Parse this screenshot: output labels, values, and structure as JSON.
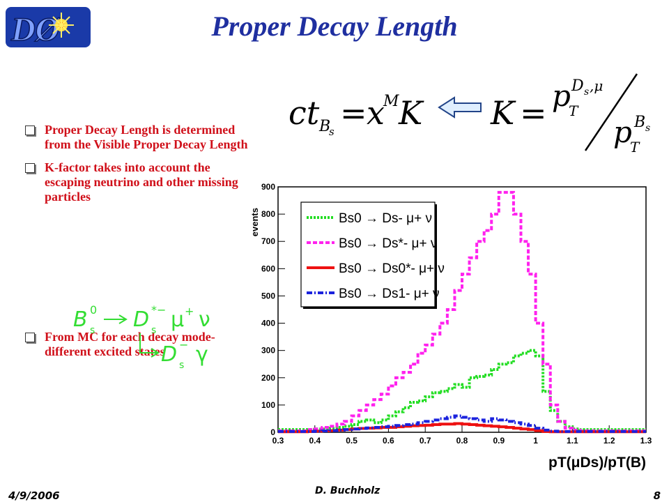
{
  "slide": {
    "title": "Proper Decay Length",
    "logo_text": "DØ",
    "bullets": [
      "Proper Decay Length is determined from the Visible Proper Decay Length",
      " K-factor takes into account the escaping neutrino and other missing particles",
      "From MC for each decay mode- different excited states"
    ],
    "footer": {
      "date": "4/9/2006",
      "author": "D. Buchholz",
      "page": "8"
    },
    "colors": {
      "title": "#1f2fa0",
      "bullet_text": "#d0101a",
      "decay_diagram": "#33dd33"
    }
  },
  "chart_data": {
    "type": "line",
    "xlabel": "pT(μDs)/pT(B)",
    "ylabel": "events",
    "xlim": [
      0.3,
      1.3
    ],
    "ylim": [
      0,
      900
    ],
    "xticks": [
      "0.3",
      "0.4",
      "0.5",
      "0.6",
      "0.7",
      "0.8",
      "0.9",
      "1",
      "1.1",
      "1.2",
      "1.3"
    ],
    "yticks": [
      "0",
      "100",
      "200",
      "300",
      "400",
      "500",
      "600",
      "700",
      "800",
      "900"
    ],
    "legend_position": "top-left",
    "x": [
      0.3,
      0.32,
      0.34,
      0.36,
      0.38,
      0.4,
      0.42,
      0.44,
      0.46,
      0.48,
      0.5,
      0.52,
      0.54,
      0.56,
      0.58,
      0.6,
      0.62,
      0.64,
      0.66,
      0.68,
      0.7,
      0.72,
      0.74,
      0.76,
      0.78,
      0.8,
      0.82,
      0.84,
      0.86,
      0.88,
      0.9,
      0.92,
      0.94,
      0.96,
      0.98,
      1.0,
      1.02,
      1.04,
      1.06,
      1.08,
      1.1,
      1.12,
      1.14,
      1.16,
      1.18,
      1.2,
      1.22,
      1.24,
      1.26,
      1.28
    ],
    "series": [
      {
        "name": "Bs0 → Ds- μ+ ν",
        "color": "#22dd22",
        "style": "dotted",
        "values": [
          10,
          10,
          10,
          10,
          10,
          12,
          12,
          15,
          18,
          22,
          28,
          40,
          45,
          35,
          45,
          60,
          75,
          90,
          110,
          115,
          130,
          145,
          150,
          160,
          175,
          165,
          200,
          205,
          210,
          230,
          250,
          255,
          280,
          290,
          300,
          280,
          150,
          80,
          40,
          20,
          12,
          10,
          10,
          10,
          10,
          10,
          10,
          10,
          10,
          10
        ]
      },
      {
        "name": "Bs0 → Ds*- μ+ ν",
        "color": "#ff22ee",
        "style": "dashed",
        "values": [
          5,
          5,
          5,
          5,
          10,
          12,
          18,
          22,
          30,
          40,
          60,
          80,
          100,
          120,
          140,
          170,
          200,
          220,
          250,
          290,
          320,
          360,
          400,
          450,
          520,
          580,
          640,
          700,
          740,
          800,
          880,
          880,
          800,
          700,
          580,
          400,
          250,
          100,
          40,
          15,
          8,
          5,
          5,
          5,
          5,
          5,
          5,
          5,
          5,
          5
        ]
      },
      {
        "name": "Bs0 → Ds0*- μ+ ν",
        "color": "#ee1111",
        "style": "solid",
        "values": [
          2,
          2,
          2,
          2,
          3,
          4,
          5,
          6,
          8,
          10,
          12,
          14,
          15,
          16,
          18,
          18,
          20,
          22,
          24,
          25,
          26,
          28,
          30,
          30,
          32,
          30,
          28,
          26,
          24,
          22,
          20,
          18,
          15,
          12,
          10,
          6,
          3,
          2,
          2,
          2,
          2,
          2,
          2,
          2,
          2,
          2,
          2,
          2,
          2,
          2
        ]
      },
      {
        "name": "Bs0 → Ds1- μ+ ν",
        "color": "#1a22dd",
        "style": "dashdot",
        "values": [
          3,
          3,
          3,
          3,
          3,
          4,
          5,
          6,
          8,
          10,
          12,
          14,
          16,
          18,
          20,
          22,
          25,
          28,
          30,
          35,
          40,
          45,
          50,
          55,
          60,
          55,
          50,
          45,
          40,
          50,
          45,
          40,
          35,
          30,
          25,
          15,
          8,
          4,
          3,
          3,
          3,
          3,
          3,
          3,
          3,
          3,
          3,
          3,
          3,
          3
        ]
      }
    ]
  }
}
